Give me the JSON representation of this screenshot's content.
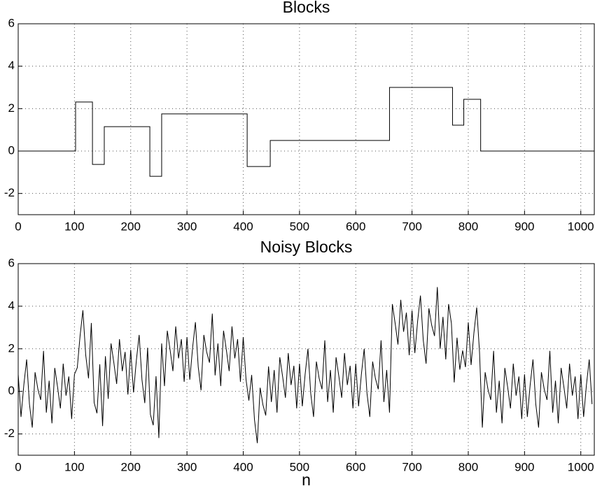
{
  "chart_data": [
    {
      "type": "line",
      "title": "Blocks",
      "color": "#000000",
      "grid": true,
      "x": [
        0,
        102,
        102,
        132,
        132,
        153,
        153,
        234,
        234,
        255,
        255,
        407,
        407,
        448,
        448,
        660,
        660,
        772,
        772,
        792,
        792,
        822,
        822,
        1024
      ],
      "values": [
        0,
        0,
        2.31,
        2.31,
        -0.63,
        -0.63,
        1.15,
        1.15,
        -1.19,
        -1.19,
        1.75,
        1.75,
        -0.73,
        -0.73,
        0.5,
        0.5,
        3.0,
        3.0,
        1.22,
        1.22,
        2.44,
        2.44,
        0,
        0
      ],
      "xlim": [
        0,
        1024
      ],
      "ylim": [
        -3,
        6
      ],
      "xticks": [
        0,
        100,
        200,
        300,
        400,
        500,
        600,
        700,
        800,
        900,
        1000
      ],
      "yticks": [
        -2,
        0,
        2,
        4,
        6
      ]
    },
    {
      "type": "line",
      "title": "Noisy Blocks",
      "xlabel": "n",
      "color": "#000000",
      "grid": true,
      "x": [
        0,
        5,
        10,
        15,
        20,
        25,
        30,
        35,
        40,
        45,
        50,
        55,
        60,
        65,
        70,
        75,
        80,
        85,
        90,
        95,
        100,
        105,
        110,
        115,
        120,
        125,
        130,
        135,
        140,
        145,
        150,
        155,
        160,
        165,
        170,
        175,
        180,
        185,
        190,
        195,
        200,
        205,
        210,
        215,
        220,
        225,
        230,
        235,
        240,
        245,
        250,
        255,
        260,
        265,
        270,
        275,
        280,
        285,
        290,
        295,
        300,
        305,
        310,
        315,
        320,
        325,
        330,
        335,
        340,
        345,
        350,
        355,
        360,
        365,
        370,
        375,
        380,
        385,
        390,
        395,
        400,
        405,
        410,
        415,
        420,
        425,
        430,
        435,
        440,
        445,
        450,
        455,
        460,
        465,
        470,
        475,
        480,
        485,
        490,
        495,
        500,
        505,
        510,
        515,
        520,
        525,
        530,
        535,
        540,
        545,
        550,
        555,
        560,
        565,
        570,
        575,
        580,
        585,
        590,
        595,
        600,
        605,
        610,
        615,
        620,
        625,
        630,
        635,
        640,
        645,
        650,
        655,
        660,
        665,
        670,
        675,
        680,
        685,
        690,
        695,
        700,
        705,
        710,
        715,
        720,
        725,
        730,
        735,
        740,
        745,
        750,
        755,
        760,
        765,
        770,
        775,
        780,
        785,
        790,
        795,
        800,
        805,
        810,
        815,
        820,
        825,
        830,
        835,
        840,
        845,
        850,
        855,
        860,
        865,
        870,
        875,
        880,
        885,
        890,
        895,
        900,
        905,
        910,
        915,
        920,
        925,
        930,
        935,
        940,
        945,
        950,
        955,
        960,
        965,
        970,
        975,
        980,
        985,
        990,
        995,
        1000,
        1005,
        1010,
        1015,
        1020
      ],
      "values": [
        0.8,
        -1.2,
        0.3,
        1.5,
        -0.6,
        -1.7,
        0.9,
        0.1,
        -0.4,
        1.9,
        -1.0,
        0.5,
        -1.5,
        1.1,
        0.2,
        -0.8,
        1.3,
        -0.2,
        0.7,
        -1.3,
        0.8,
        1.11,
        2.61,
        3.81,
        1.71,
        0.61,
        3.21,
        -0.53,
        -1.03,
        1.27,
        -1.63,
        1.65,
        -0.35,
        2.25,
        1.35,
        0.35,
        2.45,
        0.95,
        1.85,
        -0.15,
        1.95,
        -0.05,
        1.45,
        2.65,
        0.55,
        -0.55,
        2.05,
        -1.09,
        -1.59,
        0.71,
        -2.19,
        2.25,
        0.25,
        2.85,
        1.95,
        0.95,
        3.05,
        1.55,
        2.45,
        0.45,
        2.55,
        0.55,
        2.05,
        3.25,
        1.15,
        0.05,
        2.65,
        1.85,
        1.35,
        3.65,
        0.75,
        2.25,
        0.25,
        2.85,
        1.95,
        0.95,
        3.05,
        1.55,
        2.45,
        0.45,
        2.55,
        0.55,
        -0.43,
        0.77,
        -1.33,
        -2.43,
        0.17,
        -0.63,
        -1.13,
        1.17,
        -0.5,
        1.0,
        -1.0,
        1.6,
        0.7,
        -0.3,
        1.8,
        0.3,
        1.2,
        -0.8,
        1.3,
        -0.7,
        0.8,
        2.0,
        -0.1,
        -1.2,
        1.4,
        0.6,
        0.1,
        2.4,
        -0.5,
        1.0,
        -1.0,
        1.6,
        0.7,
        -0.3,
        1.8,
        0.3,
        1.2,
        -0.8,
        1.3,
        -0.7,
        0.8,
        2.0,
        -0.1,
        -1.2,
        1.4,
        0.6,
        0.1,
        2.4,
        -0.5,
        1.0,
        -1.0,
        4.1,
        3.2,
        2.2,
        4.3,
        2.8,
        3.7,
        1.7,
        3.8,
        1.8,
        3.3,
        4.5,
        2.4,
        1.3,
        3.9,
        3.1,
        2.6,
        4.9,
        2.0,
        3.5,
        1.5,
        4.1,
        3.2,
        0.42,
        2.52,
        1.02,
        1.92,
        1.14,
        3.24,
        1.24,
        2.74,
        3.94,
        1.84,
        -1.7,
        0.9,
        0.1,
        -0.4,
        1.9,
        -1.0,
        0.5,
        -1.5,
        1.1,
        0.2,
        -0.8,
        1.3,
        -0.2,
        0.7,
        -1.3,
        0.8,
        -1.2,
        0.3,
        1.5,
        -0.6,
        -1.7,
        0.9,
        0.1,
        -0.4,
        1.9,
        -1.0,
        0.5,
        -1.5,
        1.1,
        0.2,
        -0.8,
        1.3,
        -0.2,
        0.7,
        -1.3,
        0.8,
        -1.2,
        0.3,
        1.5,
        -0.6
      ],
      "xlim": [
        0,
        1024
      ],
      "ylim": [
        -3,
        6
      ],
      "xticks": [
        0,
        100,
        200,
        300,
        400,
        500,
        600,
        700,
        800,
        900,
        1000
      ],
      "yticks": [
        -2,
        0,
        2,
        4,
        6
      ]
    }
  ]
}
